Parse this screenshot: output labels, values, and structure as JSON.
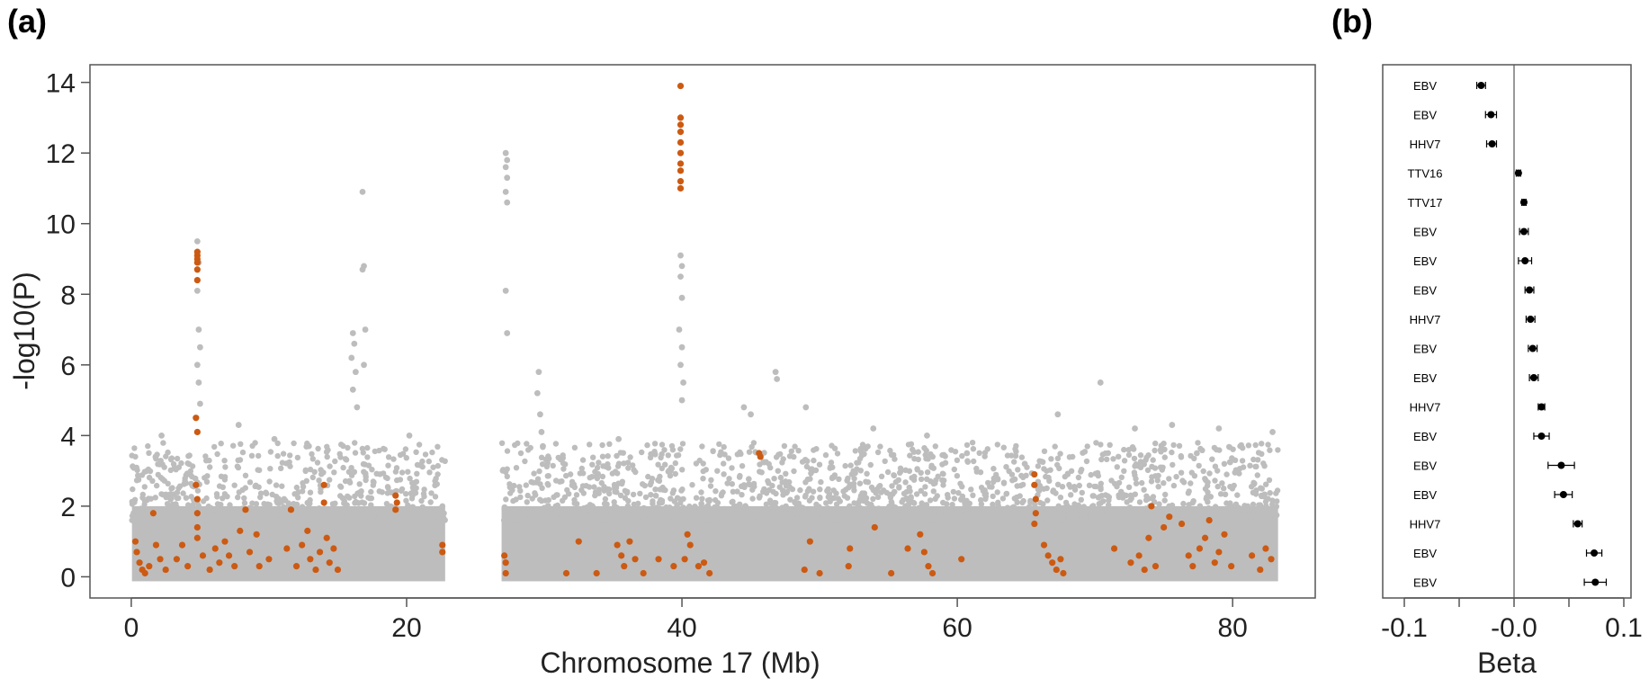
{
  "panels": {
    "a_label": "(a)",
    "b_label": "(b)"
  },
  "chart_data": [
    {
      "type": "scatter",
      "title": "",
      "xlabel": "Chromosome 17 (Mb)",
      "ylabel": "-log10(P)",
      "xlim": [
        -3,
        86
      ],
      "ylim": [
        -0.6,
        14.5
      ],
      "xticks": [
        0,
        20,
        40,
        60,
        80
      ],
      "yticks": [
        0,
        2,
        4,
        6,
        8,
        10,
        12,
        14
      ],
      "grid": false,
      "colors": {
        "background_snps": "#bdbdbd",
        "highlighted_snps": "#cc5a12"
      },
      "gap_mb": [
        22.8,
        26.9
      ],
      "series": [
        {
          "points": [
            [
              4.8,
              9.5
            ],
            [
              4.9,
              8.9
            ],
            [
              4.8,
              8.1
            ],
            [
              4.9,
              7.0
            ],
            [
              5.0,
              6.5
            ],
            [
              4.8,
              6.0
            ],
            [
              4.9,
              5.5
            ],
            [
              5.0,
              4.9
            ],
            [
              7.8,
              4.3
            ],
            [
              16.1,
              6.9
            ],
            [
              16.2,
              6.6
            ],
            [
              16.0,
              6.2
            ],
            [
              16.3,
              5.8
            ],
            [
              16.1,
              5.3
            ],
            [
              16.4,
              4.8
            ],
            [
              16.8,
              10.9
            ],
            [
              16.9,
              8.8
            ],
            [
              16.8,
              8.7
            ],
            [
              17.0,
              7.0
            ],
            [
              16.9,
              6.0
            ],
            [
              27.2,
              12.0
            ],
            [
              27.3,
              11.8
            ],
            [
              27.2,
              11.6
            ],
            [
              27.3,
              11.3
            ],
            [
              27.2,
              10.9
            ],
            [
              27.3,
              10.6
            ],
            [
              27.2,
              8.1
            ],
            [
              27.3,
              6.9
            ],
            [
              29.6,
              5.8
            ],
            [
              29.5,
              5.2
            ],
            [
              29.7,
              4.6
            ],
            [
              29.8,
              4.1
            ],
            [
              29.9,
              3.7
            ],
            [
              39.9,
              9.1
            ],
            [
              40.0,
              8.8
            ],
            [
              39.9,
              8.5
            ],
            [
              40.0,
              7.9
            ],
            [
              39.8,
              7.0
            ],
            [
              40.0,
              6.5
            ],
            [
              39.9,
              6.0
            ],
            [
              40.1,
              5.5
            ],
            [
              40.0,
              5.0
            ],
            [
              44.5,
              4.8
            ],
            [
              45.0,
              4.6
            ],
            [
              46.8,
              5.8
            ],
            [
              46.9,
              5.6
            ],
            [
              49.0,
              4.8
            ],
            [
              53.9,
              4.2
            ],
            [
              57.8,
              4.0
            ],
            [
              67.3,
              4.6
            ],
            [
              70.4,
              5.5
            ],
            [
              75.6,
              4.3
            ],
            [
              72.9,
              4.2
            ],
            [
              79.0,
              4.2
            ],
            [
              82.9,
              4.1
            ],
            [
              2.2,
              4.0
            ],
            [
              10.4,
              3.9
            ],
            [
              12.9,
              3.7
            ],
            [
              20.2,
              4.0
            ],
            [
              35.4,
              3.9
            ],
            [
              60.7,
              3.5
            ],
            [
              64.9,
              3.2
            ],
            [
              77.4,
              3.5
            ]
          ]
        },
        {
          "points": [
            [
              0.3,
              1.0
            ],
            [
              0.4,
              0.7
            ],
            [
              0.6,
              0.4
            ],
            [
              0.8,
              0.2
            ],
            [
              1.0,
              0.1
            ],
            [
              1.3,
              0.3
            ],
            [
              1.6,
              1.8
            ],
            [
              1.8,
              0.9
            ],
            [
              2.1,
              0.5
            ],
            [
              2.5,
              0.2
            ],
            [
              3.3,
              0.5
            ],
            [
              3.7,
              0.9
            ],
            [
              4.1,
              0.3
            ],
            [
              4.8,
              9.2
            ],
            [
              4.8,
              9.1
            ],
            [
              4.8,
              9.0
            ],
            [
              4.8,
              8.9
            ],
            [
              4.8,
              8.7
            ],
            [
              4.8,
              8.4
            ],
            [
              4.7,
              4.5
            ],
            [
              4.8,
              4.1
            ],
            [
              4.7,
              2.6
            ],
            [
              4.8,
              2.2
            ],
            [
              4.8,
              1.8
            ],
            [
              4.8,
              1.4
            ],
            [
              4.8,
              1.1
            ],
            [
              5.2,
              0.6
            ],
            [
              5.7,
              0.2
            ],
            [
              6.1,
              0.8
            ],
            [
              6.4,
              0.4
            ],
            [
              6.8,
              1.0
            ],
            [
              7.1,
              0.6
            ],
            [
              7.5,
              0.3
            ],
            [
              7.9,
              1.3
            ],
            [
              8.3,
              1.9
            ],
            [
              8.6,
              0.7
            ],
            [
              9.1,
              1.2
            ],
            [
              9.3,
              0.3
            ],
            [
              10.0,
              0.5
            ],
            [
              11.3,
              0.8
            ],
            [
              11.6,
              1.9
            ],
            [
              12.0,
              0.3
            ],
            [
              12.4,
              0.9
            ],
            [
              12.8,
              1.3
            ],
            [
              13.0,
              0.5
            ],
            [
              13.4,
              0.2
            ],
            [
              13.7,
              0.7
            ],
            [
              14.0,
              2.6
            ],
            [
              14.0,
              2.1
            ],
            [
              14.2,
              1.1
            ],
            [
              14.4,
              0.4
            ],
            [
              14.7,
              0.8
            ],
            [
              15.0,
              0.2
            ],
            [
              19.2,
              2.3
            ],
            [
              19.3,
              2.1
            ],
            [
              19.2,
              1.9
            ],
            [
              22.6,
              0.9
            ],
            [
              22.6,
              0.7
            ],
            [
              27.1,
              0.6
            ],
            [
              27.2,
              0.4
            ],
            [
              27.2,
              0.1
            ],
            [
              31.6,
              0.1
            ],
            [
              32.5,
              1.0
            ],
            [
              33.8,
              0.1
            ],
            [
              35.3,
              0.9
            ],
            [
              35.6,
              0.6
            ],
            [
              35.8,
              0.3
            ],
            [
              36.2,
              1.0
            ],
            [
              36.6,
              0.5
            ],
            [
              37.2,
              0.1
            ],
            [
              38.3,
              0.5
            ],
            [
              39.4,
              0.3
            ],
            [
              39.9,
              13.9
            ],
            [
              39.9,
              13.0
            ],
            [
              39.9,
              12.8
            ],
            [
              39.9,
              12.6
            ],
            [
              39.9,
              12.3
            ],
            [
              39.9,
              12.0
            ],
            [
              39.9,
              11.7
            ],
            [
              39.9,
              11.5
            ],
            [
              39.9,
              11.2
            ],
            [
              39.9,
              11.0
            ],
            [
              40.2,
              0.5
            ],
            [
              40.4,
              1.2
            ],
            [
              40.6,
              0.9
            ],
            [
              41.2,
              0.3
            ],
            [
              41.6,
              0.4
            ],
            [
              42.0,
              0.1
            ],
            [
              45.7,
              3.4
            ],
            [
              45.6,
              3.5
            ],
            [
              48.9,
              0.2
            ],
            [
              49.3,
              1.0
            ],
            [
              50.0,
              0.1
            ],
            [
              52.2,
              0.8
            ],
            [
              52.1,
              0.3
            ],
            [
              54.0,
              1.4
            ],
            [
              55.2,
              0.1
            ],
            [
              56.4,
              0.8
            ],
            [
              57.3,
              1.2
            ],
            [
              57.6,
              0.7
            ],
            [
              57.9,
              0.3
            ],
            [
              58.2,
              0.1
            ],
            [
              60.3,
              0.5
            ],
            [
              65.6,
              2.9
            ],
            [
              65.6,
              2.6
            ],
            [
              65.7,
              2.2
            ],
            [
              65.7,
              1.8
            ],
            [
              65.6,
              1.5
            ],
            [
              66.3,
              0.9
            ],
            [
              66.6,
              0.6
            ],
            [
              66.9,
              0.4
            ],
            [
              67.2,
              0.2
            ],
            [
              67.5,
              0.5
            ],
            [
              67.7,
              0.1
            ],
            [
              71.4,
              0.8
            ],
            [
              72.6,
              0.4
            ],
            [
              73.2,
              0.6
            ],
            [
              73.6,
              0.2
            ],
            [
              73.9,
              1.1
            ],
            [
              74.1,
              2.0
            ],
            [
              74.4,
              0.3
            ],
            [
              75.0,
              1.4
            ],
            [
              75.4,
              1.7
            ],
            [
              76.3,
              1.5
            ],
            [
              76.8,
              0.6
            ],
            [
              77.1,
              0.3
            ],
            [
              77.6,
              0.8
            ],
            [
              78.0,
              1.1
            ],
            [
              78.3,
              1.6
            ],
            [
              78.7,
              0.4
            ],
            [
              79.0,
              0.7
            ],
            [
              79.4,
              1.2
            ],
            [
              79.9,
              0.3
            ],
            [
              81.4,
              0.6
            ],
            [
              82.0,
              0.2
            ],
            [
              82.4,
              0.8
            ],
            [
              82.8,
              0.5
            ]
          ]
        }
      ]
    },
    {
      "type": "scatter",
      "title": "",
      "xlabel": "Beta",
      "ylabel": "",
      "xlim": [
        -0.1,
        0.1
      ],
      "xticks": [
        -0.1,
        0.0,
        0.1
      ],
      "xtick_labels": [
        "-0.1",
        "-0.0",
        "0.1"
      ],
      "reference_line_x": 0,
      "grid": false,
      "rows": [
        {
          "label": "EBV",
          "beta": -0.03,
          "lo": -0.034,
          "hi": -0.026
        },
        {
          "label": "EBV",
          "beta": -0.021,
          "lo": -0.026,
          "hi": -0.016
        },
        {
          "label": "HHV7",
          "beta": -0.02,
          "lo": -0.025,
          "hi": -0.016
        },
        {
          "label": "TTV16",
          "beta": 0.004,
          "lo": 0.002,
          "hi": 0.006
        },
        {
          "label": "TTV17",
          "beta": 0.009,
          "lo": 0.007,
          "hi": 0.011
        },
        {
          "label": "EBV",
          "beta": 0.009,
          "lo": 0.005,
          "hi": 0.013
        },
        {
          "label": "EBV",
          "beta": 0.01,
          "lo": 0.004,
          "hi": 0.016
        },
        {
          "label": "EBV",
          "beta": 0.014,
          "lo": 0.01,
          "hi": 0.018
        },
        {
          "label": "HHV7",
          "beta": 0.015,
          "lo": 0.011,
          "hi": 0.019
        },
        {
          "label": "EBV",
          "beta": 0.017,
          "lo": 0.013,
          "hi": 0.021
        },
        {
          "label": "EBV",
          "beta": 0.018,
          "lo": 0.014,
          "hi": 0.022
        },
        {
          "label": "HHV7",
          "beta": 0.025,
          "lo": 0.022,
          "hi": 0.028
        },
        {
          "label": "EBV",
          "beta": 0.025,
          "lo": 0.018,
          "hi": 0.032
        },
        {
          "label": "EBV",
          "beta": 0.043,
          "lo": 0.031,
          "hi": 0.055
        },
        {
          "label": "EBV",
          "beta": 0.045,
          "lo": 0.037,
          "hi": 0.053
        },
        {
          "label": "HHV7",
          "beta": 0.058,
          "lo": 0.054,
          "hi": 0.062
        },
        {
          "label": "EBV",
          "beta": 0.073,
          "lo": 0.066,
          "hi": 0.08
        },
        {
          "label": "EBV",
          "beta": 0.074,
          "lo": 0.064,
          "hi": 0.084
        }
      ]
    }
  ]
}
